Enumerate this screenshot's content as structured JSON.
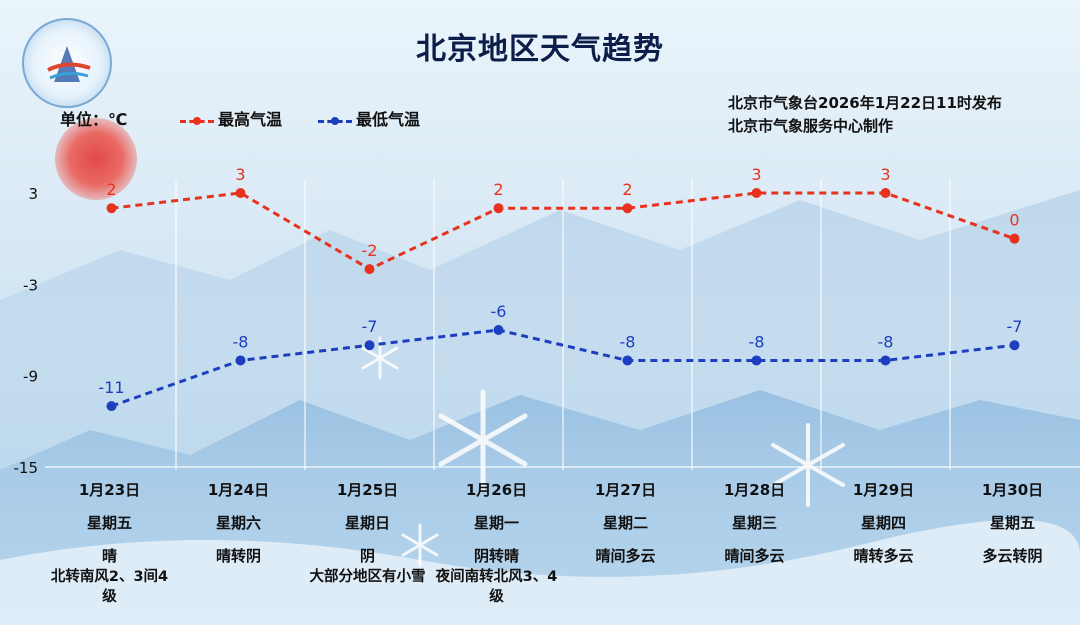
{
  "title": "北京地区天气趋势",
  "unit": "单位：℃",
  "publisher": [
    "北京市气象台2026年1月22日11时发布",
    "北京市气象服务中心制作"
  ],
  "colors": {
    "max": "#e8321e",
    "min": "#1d3fbf",
    "text": "#111111",
    "title": "#0c1d4a"
  },
  "chart_data": {
    "type": "line",
    "categories": [
      "1月23日",
      "1月24日",
      "1月25日",
      "1月26日",
      "1月27日",
      "1月28日",
      "1月29日",
      "1月30日"
    ],
    "series": [
      {
        "name": "最高气温",
        "values": [
          2,
          3,
          -2,
          2,
          2,
          3,
          3,
          0
        ],
        "color": "#e8321e",
        "style": "dashed"
      },
      {
        "name": "最低气温",
        "values": [
          -11,
          -8,
          -7,
          -6,
          -8,
          -8,
          -8,
          -7
        ],
        "color": "#1d3fbf",
        "style": "dashed"
      }
    ],
    "yticks": [
      3,
      -3,
      -9,
      -15
    ],
    "ylim": [
      -15,
      3
    ],
    "grid": "vertical lines"
  },
  "days": [
    {
      "date": "1月23日",
      "week": "星期五",
      "weather": "晴",
      "wind": "北转南风2、3间4级"
    },
    {
      "date": "1月24日",
      "week": "星期六",
      "weather": "晴转阴",
      "wind": ""
    },
    {
      "date": "1月25日",
      "week": "星期日",
      "weather": "阴",
      "wind": "大部分地区有小雪"
    },
    {
      "date": "1月26日",
      "week": "星期一",
      "weather": "阴转晴",
      "wind": "夜间南转北风3、4级"
    },
    {
      "date": "1月27日",
      "week": "星期二",
      "weather": "晴间多云",
      "wind": ""
    },
    {
      "date": "1月28日",
      "week": "星期三",
      "weather": "晴间多云",
      "wind": ""
    },
    {
      "date": "1月29日",
      "week": "星期四",
      "weather": "晴转多云",
      "wind": ""
    },
    {
      "date": "1月30日",
      "week": "星期五",
      "weather": "多云转阴",
      "wind": ""
    }
  ]
}
